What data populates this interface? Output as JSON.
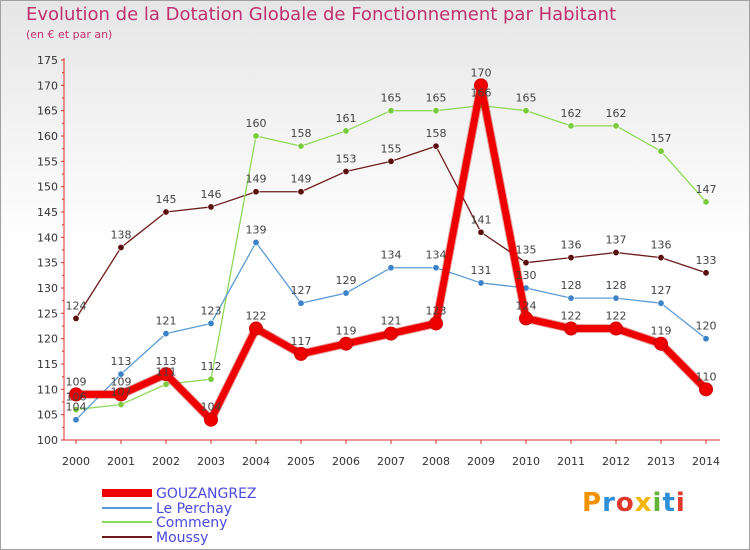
{
  "title": "Evolution de la Dotation Globale de Fonctionnement par Habitant",
  "subtitle": "(en € et par an)",
  "logo_text": "Proxiti",
  "logo_colors": [
    "#f39200",
    "#2f8ed8",
    "#e0382b",
    "#f3b400",
    "#61b33a",
    "#2f8ed8",
    "#e0382b"
  ],
  "chart_data": {
    "type": "line",
    "title": "Evolution de la Dotation Globale de Fonctionnement par Habitant",
    "subtitle": "(en € et par an)",
    "x": [
      "2000",
      "2001",
      "2002",
      "2003",
      "2004",
      "2005",
      "2006",
      "2007",
      "2008",
      "2009",
      "2010",
      "2011",
      "2012",
      "2013",
      "2014"
    ],
    "yticks": [
      "100",
      "105",
      "110",
      "115",
      "120",
      "125",
      "130",
      "135",
      "140",
      "145",
      "150",
      "155",
      "160",
      "165",
      "170",
      "175"
    ],
    "ylim": [
      100,
      175
    ],
    "grid": false,
    "legend_position": "bottom-left",
    "series": [
      {
        "name": "Moussy",
        "color": "#6e1a1a",
        "marker": "#5a1010",
        "width": 1.3,
        "values": [
          124,
          138,
          145,
          146,
          149,
          149,
          153,
          155,
          158,
          141,
          135,
          136,
          137,
          136,
          133
        ],
        "labels": [
          "124",
          "138",
          "145",
          "146",
          "149",
          "149",
          "153",
          "155",
          "158",
          "141",
          "135",
          "136",
          "137",
          "136",
          "133"
        ]
      },
      {
        "name": "Commeny",
        "color": "#8ed85a",
        "marker": "#7acb3e",
        "width": 1.3,
        "values": [
          106,
          107,
          111,
          112,
          160,
          158,
          161,
          165,
          165,
          166,
          165,
          162,
          162,
          157,
          147
        ],
        "labels": [
          "106",
          "107",
          "111",
          "112",
          "160",
          "158",
          "161",
          "165",
          "165",
          "166",
          "165",
          "162",
          "162",
          "157",
          "147"
        ]
      },
      {
        "name": "Le Perchay",
        "color": "#5a9bd5",
        "marker": "#3b82c8",
        "width": 1.3,
        "values": [
          104,
          113,
          121,
          123,
          139,
          127,
          129,
          134,
          134,
          131,
          130,
          128,
          128,
          127,
          120
        ],
        "labels": [
          "104",
          "113",
          "121",
          "123",
          "139",
          "127",
          "129",
          "134",
          "134",
          "131",
          "130",
          "128",
          "128",
          "127",
          "120"
        ]
      },
      {
        "name": "GOUZANGREZ",
        "color": "#ee0000",
        "marker": "#ee0000",
        "width": 7,
        "values": [
          109,
          109,
          113,
          104,
          122,
          117,
          119,
          121,
          123,
          170,
          124,
          122,
          122,
          119,
          110
        ],
        "labels": [
          "109",
          "109",
          "113",
          "104",
          "122",
          "117",
          "119",
          "121",
          "123",
          "170",
          "124",
          "122",
          "122",
          "119",
          "110"
        ]
      }
    ],
    "legend": [
      "GOUZANGREZ",
      "Le Perchay",
      "Commeny",
      "Moussy"
    ]
  }
}
